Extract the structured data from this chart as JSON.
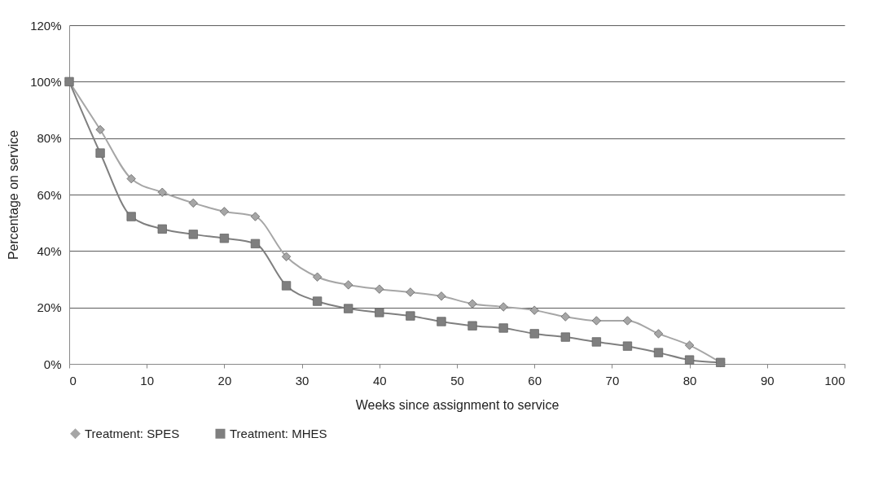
{
  "chart_data": {
    "type": "line",
    "xlabel": "Weeks since assignment to service",
    "ylabel": "Percentage on service",
    "xlim": [
      0,
      100
    ],
    "xticks": [
      0,
      10,
      20,
      30,
      40,
      50,
      60,
      70,
      80,
      90,
      100
    ],
    "ylim": [
      0,
      120
    ],
    "yticks": [
      {
        "value": 0,
        "label": "0%"
      },
      {
        "value": 20,
        "label": "20%"
      },
      {
        "value": 40,
        "label": "40%"
      },
      {
        "value": 60,
        "label": "60%"
      },
      {
        "value": 80,
        "label": "80%"
      },
      {
        "value": 100,
        "label": "100%"
      },
      {
        "value": 120,
        "label": "120%"
      }
    ],
    "x": [
      0,
      4,
      8,
      12,
      16,
      20,
      24,
      28,
      32,
      36,
      40,
      44,
      48,
      52,
      56,
      60,
      64,
      68,
      72,
      76,
      80,
      84
    ],
    "grid": "y",
    "legend": "bottom",
    "series": [
      {
        "name": "Treatment: SPES",
        "color": "#a6a6a6",
        "marker": "diamond",
        "values": [
          100,
          83,
          65.6,
          60.8,
          57,
          54,
          52.2,
          38,
          30.8,
          28,
          26.5,
          25.4,
          24,
          21.3,
          20.2,
          19,
          16.7,
          15.3,
          15.3,
          10.7,
          6.6,
          0.5
        ]
      },
      {
        "name": "Treatment: MHES",
        "color": "#7f7f7f",
        "marker": "square",
        "values": [
          100,
          74.7,
          52.2,
          47.8,
          45.9,
          44.5,
          42.6,
          27.7,
          22.2,
          19.6,
          18.2,
          17,
          15,
          13.5,
          12.7,
          10.7,
          9.5,
          7.8,
          6.3,
          4,
          1.4,
          0.5
        ]
      }
    ]
  }
}
